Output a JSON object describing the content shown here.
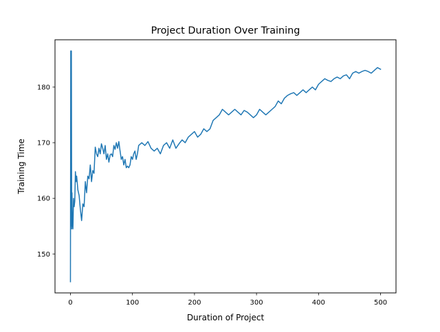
{
  "chart_data": {
    "type": "line",
    "title": "Project Duration Over Training",
    "xlabel": "Duration of Project",
    "ylabel": "Training Time",
    "xlim": [
      -24.9,
      524.9
    ],
    "ylim": [
      143.0,
      188.5
    ],
    "xticks": [
      0,
      100,
      200,
      300,
      400,
      500
    ],
    "yticks": [
      150,
      160,
      170,
      180
    ],
    "grid": false,
    "legend": "none",
    "series": [
      {
        "color": "#1f77b4",
        "x": [
          0,
          0.5,
          1,
          1.5,
          2,
          2.5,
          3,
          4,
          5,
          6,
          7,
          8,
          9,
          10,
          12,
          14,
          16,
          18,
          20,
          22,
          24,
          26,
          28,
          30,
          32,
          34,
          36,
          38,
          40,
          42,
          44,
          46,
          48,
          50,
          52,
          54,
          56,
          58,
          60,
          62,
          64,
          66,
          68,
          70,
          72,
          74,
          76,
          78,
          80,
          82,
          84,
          86,
          88,
          90,
          92,
          94,
          96,
          98,
          100,
          102,
          104,
          106,
          108,
          110,
          115,
          120,
          125,
          130,
          135,
          140,
          145,
          150,
          155,
          160,
          165,
          170,
          175,
          180,
          185,
          190,
          195,
          200,
          205,
          210,
          215,
          220,
          225,
          230,
          235,
          240,
          245,
          250,
          255,
          260,
          265,
          270,
          275,
          280,
          285,
          290,
          295,
          300,
          305,
          310,
          315,
          320,
          325,
          330,
          335,
          340,
          345,
          350,
          355,
          360,
          365,
          370,
          375,
          380,
          385,
          390,
          395,
          400,
          405,
          410,
          415,
          420,
          425,
          430,
          435,
          440,
          445,
          450,
          455,
          460,
          465,
          470,
          475,
          480,
          485,
          490,
          495,
          500
        ],
        "y": [
          145.0,
          186.5,
          155.0,
          186.5,
          154.5,
          161.0,
          156.0,
          154.5,
          160.0,
          158.5,
          159.5,
          164.8,
          163.0,
          164.0,
          161.5,
          160.5,
          158.0,
          156.0,
          159.0,
          158.5,
          163.0,
          161.0,
          164.0,
          163.5,
          166.0,
          163.0,
          165.0,
          164.5,
          169.2,
          168.0,
          167.5,
          169.0,
          168.0,
          169.8,
          169.0,
          168.0,
          169.5,
          167.0,
          168.0,
          166.5,
          167.8,
          168.0,
          167.5,
          169.5,
          168.8,
          170.0,
          169.0,
          170.2,
          168.5,
          167.0,
          167.5,
          166.0,
          167.0,
          165.5,
          165.8,
          165.5,
          166.0,
          167.5,
          167.0,
          168.0,
          168.5,
          167.0,
          168.0,
          169.5,
          170.0,
          169.5,
          170.2,
          169.0,
          168.5,
          169.0,
          168.0,
          169.5,
          170.0,
          169.0,
          170.5,
          169.0,
          169.8,
          170.5,
          170.0,
          171.0,
          171.5,
          172.0,
          171.0,
          171.5,
          172.5,
          172.0,
          172.5,
          174.0,
          174.5,
          175.0,
          176.0,
          175.5,
          175.0,
          175.5,
          176.0,
          175.5,
          175.0,
          175.8,
          175.5,
          175.0,
          174.5,
          175.0,
          176.0,
          175.5,
          175.0,
          175.5,
          176.0,
          176.5,
          177.5,
          177.0,
          178.0,
          178.5,
          178.8,
          179.0,
          178.5,
          179.0,
          179.5,
          179.0,
          179.5,
          180.0,
          179.5,
          180.5,
          181.0,
          181.5,
          181.2,
          181.0,
          181.5,
          181.8,
          181.5,
          182.0,
          182.2,
          181.5,
          182.5,
          182.8,
          182.5,
          182.8,
          183.0,
          182.8,
          182.5,
          183.0,
          183.5,
          183.2
        ]
      }
    ]
  }
}
